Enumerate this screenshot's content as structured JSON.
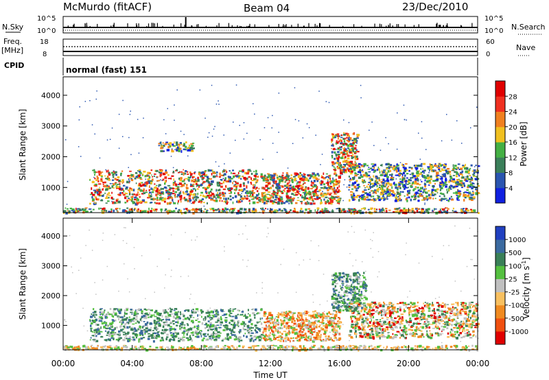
{
  "header": {
    "station": "McMurdo (fitACF)",
    "beam": "Beam 04",
    "date": "23/Dec/2010"
  },
  "top_panels": {
    "nsky_label": "N.Sky",
    "nsky_ticks": [
      "10^5",
      "10^0"
    ],
    "nsearch_label": "N.Search",
    "nsearch_ticks": [
      "10^5",
      "10^0"
    ],
    "freq_label_1": "Freq.",
    "freq_label_2": "[MHz]",
    "freq_ticks": [
      "18",
      "8"
    ],
    "nave_label": "Nave",
    "nave_ticks": [
      "60",
      "0"
    ],
    "cpid_label": "CPID",
    "cpid_value": "normal (fast) 151"
  },
  "chart_data": [
    {
      "type": "heatmap",
      "name": "power",
      "ylabel": "Slant Range [km]",
      "ylim": [
        180,
        4600
      ],
      "yticks": [
        "1000",
        "2000",
        "3000",
        "4000"
      ],
      "colorbar_label": "Power [dB]",
      "colorbar_ticks": [
        "4",
        "8",
        "12",
        "16",
        "20",
        "24",
        "28"
      ],
      "colorbar_colors": [
        "#1020e0",
        "#2a55b0",
        "#3b7f5a",
        "#44b044",
        "#f0c020",
        "#f08020",
        "#f03020",
        "#e00000"
      ],
      "echo_bands": [
        {
          "x_start": 0.0,
          "x_end": 24.0,
          "range_low": 200,
          "range_high": 350,
          "level": "mixed"
        },
        {
          "x_start": 1.5,
          "x_end": 11.5,
          "range_low": 500,
          "range_high": 1600,
          "level": "strong"
        },
        {
          "x_start": 11.5,
          "x_end": 16.0,
          "range_low": 500,
          "range_high": 1500,
          "level": "strong"
        },
        {
          "x_start": 15.5,
          "x_end": 17.0,
          "range_low": 1500,
          "range_high": 2800,
          "level": "strong"
        },
        {
          "x_start": 16.5,
          "x_end": 24.0,
          "range_low": 600,
          "range_high": 1800,
          "level": "moderate"
        },
        {
          "x_start": 5.5,
          "x_end": 7.5,
          "range_low": 2200,
          "range_high": 2500,
          "level": "moderate"
        }
      ]
    },
    {
      "type": "heatmap",
      "name": "velocity",
      "xlabel": "Time UT",
      "ylabel": "Slant Range [km]",
      "xlim": [
        0,
        24
      ],
      "ylim": [
        180,
        4600
      ],
      "xticks": [
        "00:00",
        "04:00",
        "08:00",
        "12:00",
        "16:00",
        "20:00",
        "00:00"
      ],
      "yticks": [
        "1000",
        "2000",
        "3000",
        "4000"
      ],
      "colorbar_label": "Velocity [m s^-1]",
      "colorbar_label_text": "Velocity [m s",
      "colorbar_label_sup": "-1",
      "colorbar_label_end": "]",
      "colorbar_ticks": [
        "1000",
        "500",
        "100",
        "25",
        "-25",
        "-100",
        "-500",
        "-1000"
      ],
      "colorbar_colors": [
        "#2040c0",
        "#3b6aa0",
        "#3a8058",
        "#55c040",
        "#c0c0c0",
        "#f8c060",
        "#f08a20",
        "#f05010",
        "#e00000"
      ],
      "echo_bands": [
        {
          "x_start": 1.5,
          "x_end": 11.5,
          "range_low": 500,
          "range_high": 1600,
          "level": "toward"
        },
        {
          "x_start": 11.5,
          "x_end": 16.0,
          "range_low": 500,
          "range_high": 1500,
          "level": "away"
        },
        {
          "x_start": 15.5,
          "x_end": 17.5,
          "range_low": 1500,
          "range_high": 2800,
          "level": "toward"
        },
        {
          "x_start": 16.5,
          "x_end": 24.0,
          "range_low": 600,
          "range_high": 1800,
          "level": "mixed"
        },
        {
          "x_start": 0.0,
          "x_end": 24.0,
          "range_low": 200,
          "range_high": 350,
          "level": "ground"
        }
      ]
    }
  ]
}
